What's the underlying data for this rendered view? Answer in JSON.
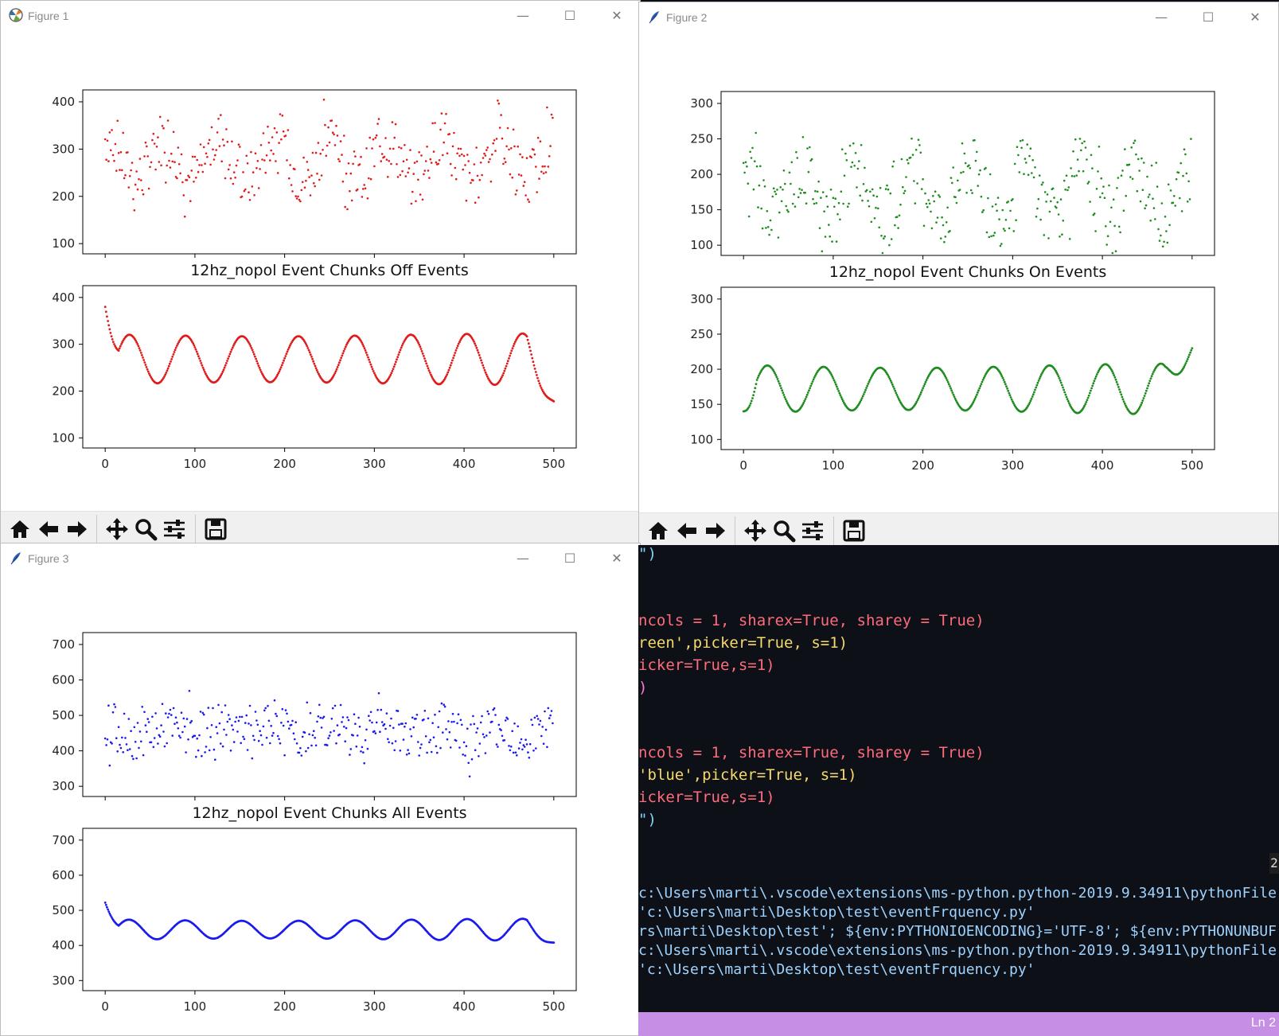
{
  "figures": [
    {
      "window_title": "Figure 1",
      "icon": "matplotlib-icon",
      "title": "12hz_nopol Event Chunks Off Events",
      "color": "#e01b1b",
      "raw_mean": 280,
      "raw_amp": 90,
      "raw_noise": 60,
      "smooth_base": 268,
      "smooth_amp": 52,
      "smooth_start": 380,
      "smooth_end": 178,
      "subplots": [
        {
          "yticks": [
            "400",
            "300",
            "200",
            "100"
          ]
        },
        {
          "yticks": [
            "400",
            "300",
            "200",
            "100"
          ],
          "xticks": [
            "0",
            "100",
            "200",
            "300",
            "400",
            "500"
          ]
        }
      ]
    },
    {
      "window_title": "Figure 2",
      "icon": "feather-icon",
      "title": "12hz_nopol Event Chunks On Events",
      "color": "#1e8c1e",
      "raw_mean": 175,
      "raw_amp": 70,
      "raw_noise": 45,
      "smooth_base": 172,
      "smooth_amp": 33,
      "smooth_start": 140,
      "smooth_end": 230,
      "subplots": [
        {
          "yticks": [
            "300",
            "250",
            "200",
            "150",
            "100"
          ]
        },
        {
          "yticks": [
            "300",
            "250",
            "200",
            "150",
            "100"
          ],
          "xticks": [
            "0",
            "100",
            "200",
            "300",
            "400",
            "500"
          ]
        }
      ]
    },
    {
      "window_title": "Figure 3",
      "icon": "feather-icon",
      "title": "12hz_nopol Event Chunks All Events",
      "color": "#1a1aee",
      "raw_mean": 455,
      "raw_amp": 30,
      "raw_noise": 65,
      "smooth_base": 445,
      "smooth_amp": 28,
      "smooth_start": 522,
      "smooth_end": 408,
      "subplots": [
        {
          "yticks": [
            "700",
            "600",
            "500",
            "400",
            "300"
          ]
        },
        {
          "yticks": [
            "700",
            "600",
            "500",
            "400",
            "300"
          ],
          "xticks": [
            "0",
            "100",
            "200",
            "300",
            "400",
            "500"
          ]
        }
      ]
    }
  ],
  "toolbar_buttons": [
    "home-icon",
    "back-arrow-icon",
    "forward-arrow-icon",
    "pan-icon",
    "zoom-icon",
    "configure-subplots-icon",
    "save-icon"
  ],
  "editor": {
    "lines": [
      [
        "\")"
      ],
      [
        "ncols = 1, sharex=True, sharey = True)"
      ],
      [
        "reen',picker=True, s=1)"
      ],
      [
        "icker=True,s=1)"
      ],
      [
        ")"
      ],
      [
        "ncols = 1, sharex=True, sharey = True)"
      ],
      [
        "'blue',picker=True, s=1)"
      ],
      [
        "icker=True,s=1)"
      ],
      [
        "\")"
      ]
    ]
  },
  "terminal": {
    "badge": "2",
    "lines": [
      "c:\\Users\\marti\\.vscode\\extensions\\ms-python.python-2019.9.34911\\pythonFile",
      "'c:\\Users\\marti\\Desktop\\test\\eventFrquency.py'",
      "rs\\marti\\Desktop\\test'; ${env:PYTHONIOENCODING}='UTF-8'; ${env:PYTHONUNBUF",
      "c:\\Users\\marti\\.vscode\\extensions\\ms-python.python-2019.9.34911\\pythonFile",
      "'c:\\Users\\marti\\Desktop\\test\\eventFrquency.py'"
    ]
  },
  "status_bar": {
    "position": "Ln 2"
  }
}
